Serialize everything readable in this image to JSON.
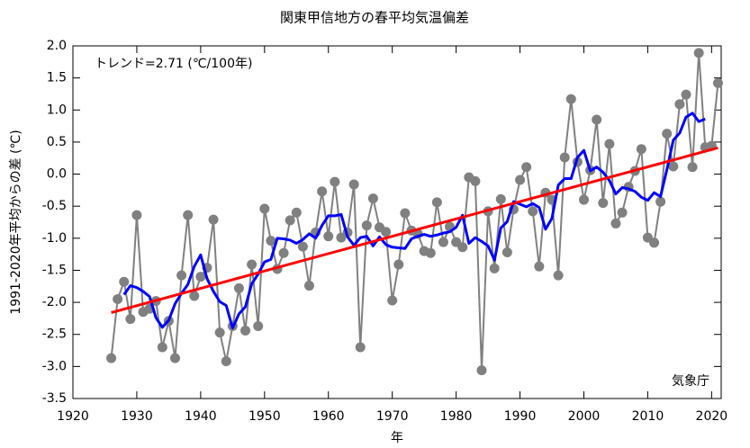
{
  "chart_data": {
    "type": "line",
    "title": "関東甲信地方の春平均気温偏差",
    "xlabel": "年",
    "ylabel": "1991-2020年平均からの差 (℃)",
    "annotations": [
      "トレンド=2.71 (℃/100年)",
      "気象庁"
    ],
    "x": [
      1926,
      1927,
      1928,
      1929,
      1930,
      1931,
      1932,
      1933,
      1934,
      1935,
      1936,
      1937,
      1938,
      1939,
      1940,
      1941,
      1942,
      1943,
      1944,
      1945,
      1946,
      1947,
      1948,
      1949,
      1950,
      1951,
      1952,
      1953,
      1954,
      1955,
      1956,
      1957,
      1958,
      1959,
      1960,
      1961,
      1962,
      1963,
      1964,
      1965,
      1966,
      1967,
      1968,
      1969,
      1970,
      1971,
      1972,
      1973,
      1974,
      1975,
      1976,
      1977,
      1978,
      1979,
      1980,
      1981,
      1982,
      1983,
      1984,
      1985,
      1986,
      1987,
      1988,
      1989,
      1990,
      1991,
      1992,
      1993,
      1994,
      1995,
      1996,
      1997,
      1998,
      1999,
      2000,
      2001,
      2002,
      2003,
      2004,
      2005,
      2006,
      2007,
      2008,
      2009,
      2010,
      2011,
      2012,
      2013,
      2014,
      2015,
      2016,
      2017,
      2018,
      2019,
      2020,
      2021
    ],
    "series": [
      {
        "color": "#808080",
        "markers": true,
        "values": [
          -2.87,
          -1.95,
          -1.68,
          -2.26,
          -0.64,
          -2.15,
          -2.1,
          -1.98,
          -2.7,
          -2.29,
          -2.87,
          -1.58,
          -0.64,
          -1.9,
          -1.6,
          -1.46,
          -0.71,
          -2.47,
          -2.92,
          -2.37,
          -1.78,
          -2.44,
          -1.41,
          -2.37,
          -0.54,
          -1.04,
          -1.48,
          -1.23,
          -0.72,
          -0.6,
          -1.13,
          -1.74,
          -0.91,
          -0.27,
          -0.97,
          -0.12,
          -0.99,
          -0.91,
          -0.16,
          -2.7,
          -0.8,
          -0.38,
          -0.83,
          -0.9,
          -1.97,
          -1.41,
          -0.61,
          -0.88,
          -0.93,
          -1.2,
          -1.23,
          -0.44,
          -1.06,
          -0.82,
          -1.06,
          -1.14,
          -0.05,
          -0.11,
          -3.06,
          -0.58,
          -1.47,
          -0.39,
          -1.22,
          -0.55,
          -0.09,
          0.11,
          -0.58,
          -1.44,
          -0.29,
          -0.4,
          -1.58,
          0.26,
          1.17,
          0.19,
          -0.4,
          0.06,
          0.85,
          -0.45,
          0.47,
          -0.77,
          -0.6,
          -0.2,
          0.05,
          0.39,
          -0.99,
          -1.07,
          -0.43,
          0.63,
          0.12,
          1.09,
          1.24,
          0.11,
          1.89,
          0.42,
          0.44,
          1.42
        ]
      },
      {
        "color": "#0000ff",
        "markers": false,
        "values": [
          null,
          null,
          -1.88,
          -1.74,
          -1.77,
          -1.83,
          -1.91,
          -2.24,
          -2.39,
          -2.28,
          -2.02,
          -1.86,
          -1.72,
          -1.44,
          -1.26,
          -1.63,
          -1.83,
          -1.99,
          -2.05,
          -2.4,
          -2.18,
          -2.07,
          -1.71,
          -1.56,
          -1.37,
          -1.33,
          -1.0,
          -1.01,
          -1.03,
          -1.08,
          -1.02,
          -0.93,
          -1.0,
          -0.8,
          -0.65,
          -0.65,
          -0.63,
          -0.98,
          -1.11,
          -0.99,
          -0.97,
          -1.12,
          -0.98,
          -1.1,
          -1.14,
          -1.15,
          -1.16,
          -1.01,
          -0.97,
          -0.94,
          -0.97,
          -0.95,
          -0.92,
          -0.9,
          -0.83,
          -0.64,
          -1.08,
          -0.99,
          -1.05,
          -1.12,
          -1.34,
          -0.84,
          -0.74,
          -0.43,
          -0.47,
          -0.51,
          -0.46,
          -0.52,
          -0.86,
          -0.69,
          -0.17,
          -0.07,
          -0.07,
          0.26,
          0.37,
          0.05,
          0.11,
          0.03,
          -0.1,
          -0.31,
          -0.21,
          -0.23,
          -0.27,
          -0.36,
          -0.41,
          -0.29,
          -0.35,
          0.07,
          0.53,
          0.64,
          0.89,
          0.95,
          0.82,
          0.86,
          null,
          null
        ]
      },
      {
        "color": "#ff0000",
        "markers": false,
        "x": [
          1926,
          2021
        ],
        "values": [
          -2.16,
          0.41
        ]
      }
    ],
    "xlim": [
      1920,
      2021.5
    ],
    "xticks": [
      1920,
      1930,
      1940,
      1950,
      1960,
      1970,
      1980,
      1990,
      2000,
      2010,
      2020
    ],
    "ylim": [
      -3.5,
      2
    ],
    "yticks": [
      {
        "value": 2,
        "label": "2.0"
      },
      1.5,
      {
        "value": 1,
        "label": "1.0"
      },
      0.5,
      {
        "value": 0,
        "label": "0.0"
      },
      -0.5,
      {
        "value": -1,
        "label": "-1.0"
      },
      -1.5,
      {
        "value": -2,
        "label": "-2.0"
      },
      -2.5,
      {
        "value": -3,
        "label": "-3.0"
      },
      -3.5
    ]
  }
}
